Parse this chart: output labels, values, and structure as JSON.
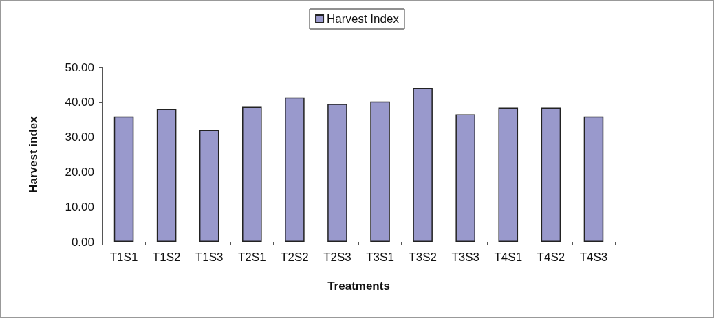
{
  "chart_data": {
    "type": "bar",
    "xlabel": "Treatments",
    "ylabel": "Harvest index",
    "categories": [
      "T1S1",
      "T1S2",
      "T1S3",
      "T2S1",
      "T2S2",
      "T2S3",
      "T3S1",
      "T3S2",
      "T3S3",
      "T4S1",
      "T4S2",
      "T4S3"
    ],
    "series": [
      {
        "name": "Harvest Index",
        "color": "#9999cc",
        "values": [
          35.9,
          38.1,
          32.0,
          38.7,
          41.4,
          39.5,
          40.2,
          44.1,
          36.5,
          38.5,
          38.5,
          35.9
        ]
      }
    ],
    "ylim": [
      0,
      50
    ],
    "yticks": [
      {
        "value": 0,
        "label": "0.00"
      },
      {
        "value": 10,
        "label": "10.00"
      },
      {
        "value": 20,
        "label": "20.00"
      },
      {
        "value": 30,
        "label": "30.00"
      },
      {
        "value": 40,
        "label": "40.00"
      },
      {
        "value": 50,
        "label": "50.00"
      }
    ],
    "grid": false,
    "legend": "top"
  }
}
